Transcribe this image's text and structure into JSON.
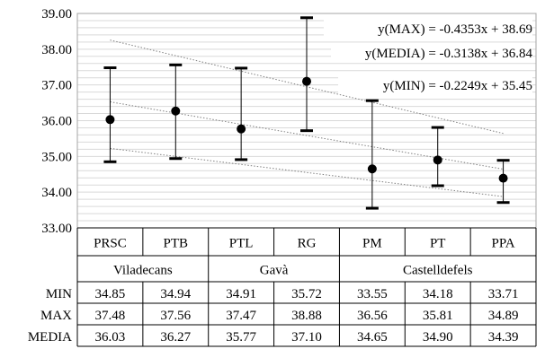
{
  "chart_data": {
    "type": "scatter",
    "title": "",
    "xlabel": "",
    "ylabel": "",
    "ylim": [
      33.0,
      39.0
    ],
    "y_ticks": [
      "33.00",
      "34.00",
      "35.00",
      "36.00",
      "37.00",
      "38.00",
      "39.00"
    ],
    "y_tick_values": [
      33,
      34,
      35,
      36,
      37,
      38,
      39
    ],
    "minor_grid_step": 0.2,
    "grid": true,
    "categories": [
      "PRSC",
      "PTB",
      "PTL",
      "RG",
      "PM",
      "PT",
      "PPA"
    ],
    "groups": [
      {
        "label": "Viladecans",
        "categories": [
          "PRSC",
          "PTB"
        ]
      },
      {
        "label": "Gavà",
        "categories": [
          "PTL",
          "RG"
        ]
      },
      {
        "label": "Castelldefels",
        "categories": [
          "PM",
          "PT",
          "PPA"
        ]
      }
    ],
    "rows": [
      {
        "label": "MIN",
        "key": "min",
        "values": [
          "34.85",
          "34.94",
          "34.91",
          "35.72",
          "33.55",
          "34.18",
          "33.71"
        ]
      },
      {
        "label": "MAX",
        "key": "max",
        "values": [
          "37.48",
          "37.56",
          "37.47",
          "38.88",
          "36.56",
          "35.81",
          "34.89"
        ]
      },
      {
        "label": "MEDIA",
        "key": "media",
        "values": [
          "36.03",
          "36.27",
          "35.77",
          "37.10",
          "34.65",
          "34.90",
          "34.39"
        ]
      }
    ],
    "series": [
      {
        "key": "min",
        "values": [
          34.85,
          34.94,
          34.91,
          35.72,
          33.55,
          34.18,
          33.71
        ]
      },
      {
        "key": "max",
        "values": [
          37.48,
          37.56,
          37.47,
          38.88,
          36.56,
          35.81,
          34.89
        ]
      },
      {
        "key": "media",
        "values": [
          36.03,
          36.27,
          35.77,
          37.1,
          34.65,
          34.9,
          34.39
        ]
      }
    ],
    "trendlines": [
      {
        "label": "y(MAX) = -0.4353x + 38.69",
        "slope": -0.4353,
        "intercept": 38.69,
        "style": "dotted"
      },
      {
        "label": "y(MEDIA) = -0.3138x + 36.84",
        "slope": -0.3138,
        "intercept": 36.84,
        "style": "dotted"
      },
      {
        "label": "y(MIN) = -0.2249x + 35.45",
        "slope": -0.2249,
        "intercept": 35.45,
        "style": "dotted"
      }
    ],
    "colors": {
      "marks": "#000000",
      "grid": "#d9d9d9",
      "border": "#a6a6a6",
      "trend": "#808080"
    }
  }
}
